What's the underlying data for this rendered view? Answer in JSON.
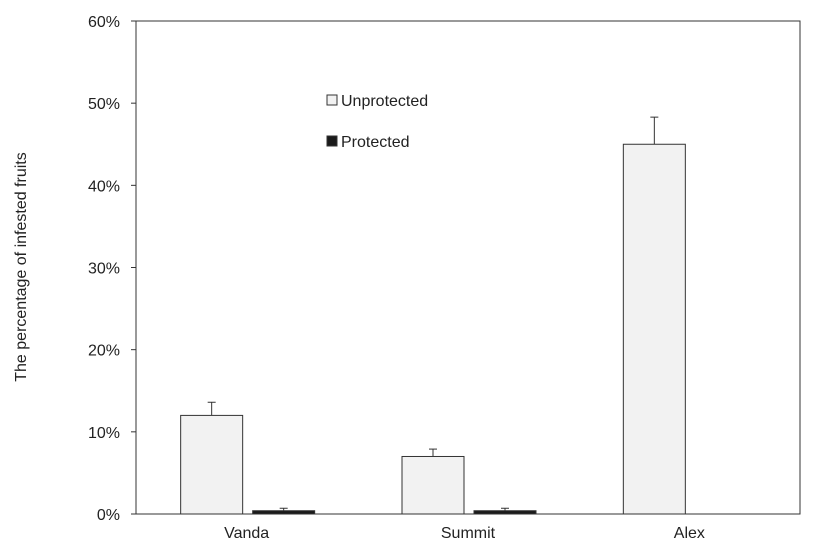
{
  "chart_data": {
    "type": "bar",
    "categories": [
      "Vanda",
      "Summit",
      "Alex"
    ],
    "series": [
      {
        "name": "Unprotected",
        "values": [
          12,
          7,
          45
        ],
        "errors": [
          1.6,
          0.9,
          3.3
        ],
        "color": "#f2f2f2"
      },
      {
        "name": "Protected",
        "values": [
          0.4,
          0.4,
          0
        ],
        "errors": [
          0.3,
          0.3,
          0
        ],
        "color": "#1a1a1a"
      }
    ],
    "ylabel": "The percentage of infested fruits",
    "xlabel": "",
    "ylim": [
      0,
      60
    ],
    "yticks": [
      0,
      10,
      20,
      30,
      40,
      50,
      60
    ],
    "ytick_labels": [
      "0%",
      "10%",
      "20%",
      "30%",
      "40%",
      "50%",
      "60%"
    ],
    "grid": false,
    "legend_position": "top-center"
  }
}
